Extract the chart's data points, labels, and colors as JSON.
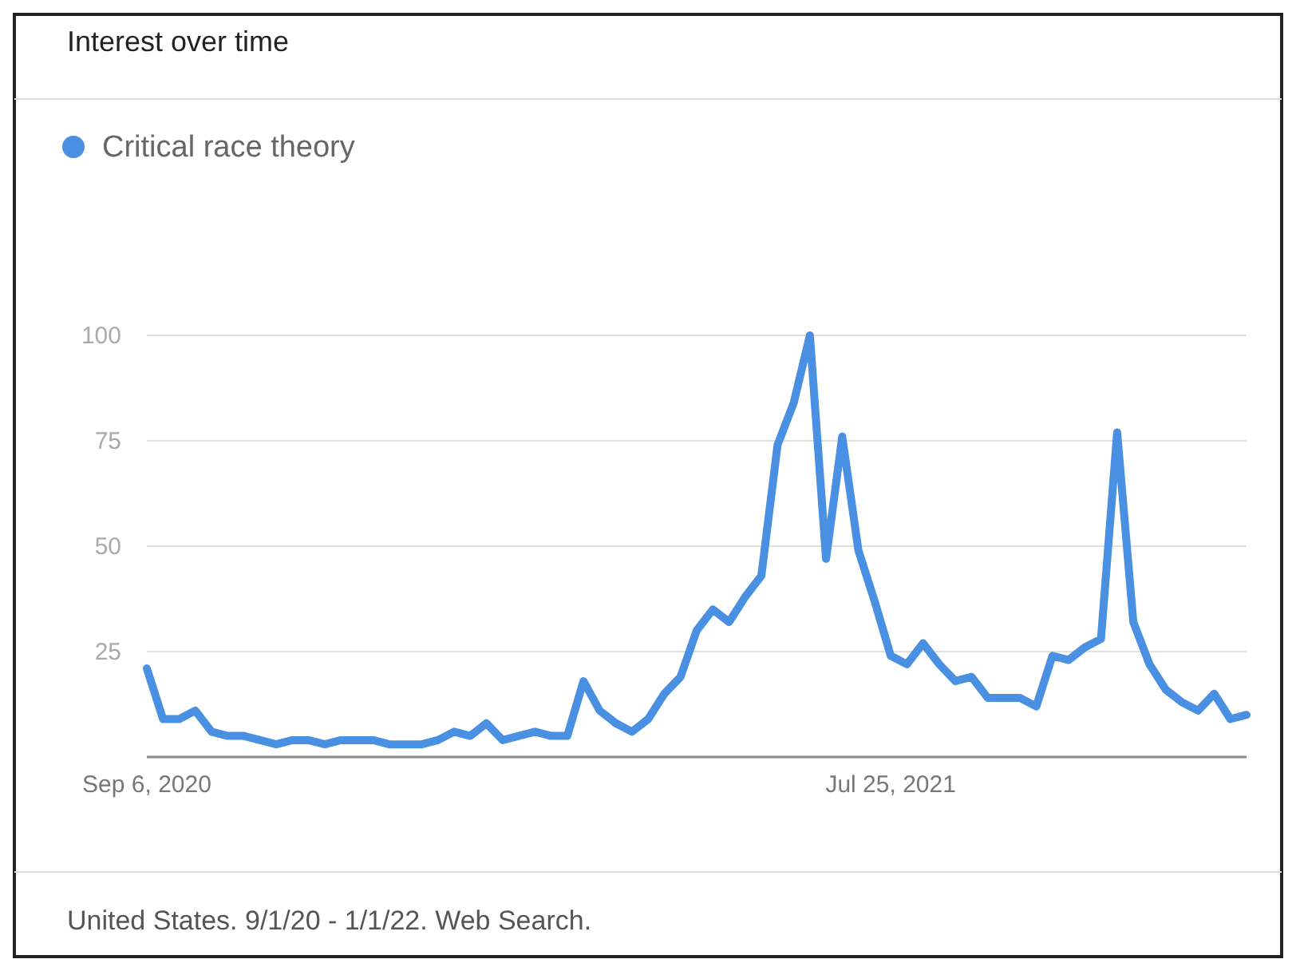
{
  "chart_data": {
    "type": "line",
    "title": "Interest over time",
    "annotations": [
      "United States. 9/1/20 - 1/1/22. Web Search."
    ],
    "x": [
      "2020-09-06",
      "2020-09-13",
      "2020-09-20",
      "2020-09-27",
      "2020-10-04",
      "2020-10-11",
      "2020-10-18",
      "2020-10-25",
      "2020-11-01",
      "2020-11-08",
      "2020-11-15",
      "2020-11-22",
      "2020-11-29",
      "2020-12-06",
      "2020-12-13",
      "2020-12-20",
      "2020-12-27",
      "2021-01-03",
      "2021-01-10",
      "2021-01-17",
      "2021-01-24",
      "2021-01-31",
      "2021-02-07",
      "2021-02-14",
      "2021-02-21",
      "2021-02-28",
      "2021-03-07",
      "2021-03-14",
      "2021-03-21",
      "2021-03-28",
      "2021-04-04",
      "2021-04-11",
      "2021-04-18",
      "2021-04-25",
      "2021-05-02",
      "2021-05-09",
      "2021-05-16",
      "2021-05-23",
      "2021-05-30",
      "2021-06-06",
      "2021-06-13",
      "2021-06-20",
      "2021-06-27",
      "2021-07-04",
      "2021-07-11",
      "2021-07-18",
      "2021-07-25",
      "2021-08-01",
      "2021-08-08",
      "2021-08-15",
      "2021-08-22",
      "2021-08-29",
      "2021-09-05",
      "2021-09-12",
      "2021-09-19",
      "2021-09-26",
      "2021-10-03",
      "2021-10-10",
      "2021-10-17",
      "2021-10-24",
      "2021-10-31",
      "2021-11-07",
      "2021-11-14",
      "2021-11-21",
      "2021-11-28",
      "2021-12-05",
      "2021-12-12",
      "2021-12-19",
      "2021-12-26"
    ],
    "series": [
      {
        "name": "Critical race theory",
        "color": "#4a90e2",
        "values": [
          21,
          9,
          9,
          11,
          6,
          5,
          5,
          4,
          3,
          4,
          4,
          3,
          4,
          4,
          4,
          3,
          3,
          3,
          4,
          6,
          5,
          8,
          4,
          5,
          6,
          5,
          5,
          18,
          11,
          8,
          6,
          9,
          15,
          19,
          30,
          35,
          32,
          38,
          43,
          74,
          84,
          100,
          47,
          76,
          49,
          37,
          24,
          22,
          27,
          22,
          18,
          19,
          14,
          14,
          14,
          12,
          24,
          23,
          26,
          28,
          77,
          32,
          22,
          16,
          13,
          11,
          15,
          9,
          10
        ]
      }
    ],
    "xlim": [
      "2020-09-06",
      "2021-12-26"
    ],
    "xticks": [
      {
        "value": "2020-09-06",
        "label": "Sep 6, 2020"
      },
      {
        "value": "2021-07-25",
        "label": "Jul 25, 2021"
      }
    ],
    "ylim": [
      0,
      100
    ],
    "yticks": [
      25,
      50,
      75,
      100
    ],
    "grid": "y",
    "legend": "top left",
    "marker": "none",
    "line_style": "solid"
  }
}
